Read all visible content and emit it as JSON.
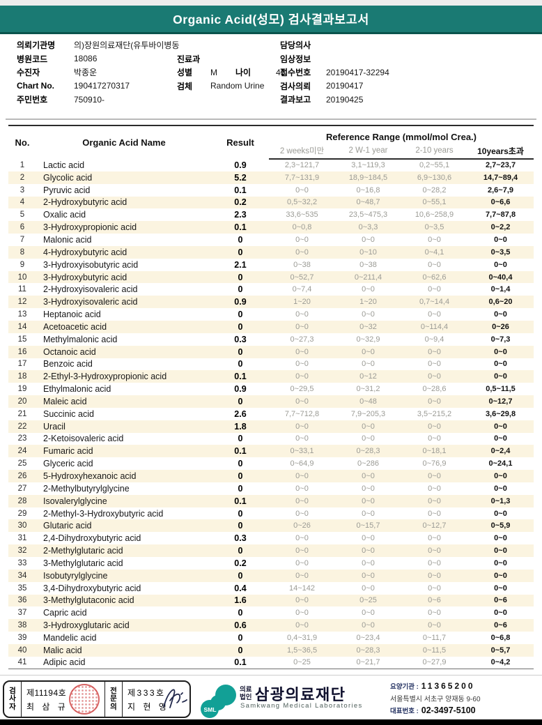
{
  "header": {
    "title": "Organic Acid(성모) 검사결과보고서"
  },
  "colors": {
    "banner_teal": "#1a7a73",
    "banner_border": "#0b544d",
    "row_stripe": "#fbf4e0",
    "reference_gray": "#9b9b95",
    "seal_red": "#c92a2a",
    "logo_teal": "#12a096",
    "logo_navy": "#0f102d"
  },
  "info": {
    "left": [
      {
        "label": "의뢰기관명",
        "value": "의)장원의료재단(유투바이병동"
      },
      {
        "label": "병원코드",
        "value": "18086"
      },
      {
        "label": "수진자",
        "value": "박종운"
      },
      {
        "label": "Chart No.",
        "value": "190417270317"
      },
      {
        "label": "주민번호",
        "value": "750910-"
      }
    ],
    "mid": [
      {
        "label": "진료과",
        "value": ""
      },
      {
        "label": "성별",
        "value": "M",
        "label2": "나이",
        "value2": "43"
      },
      {
        "label": "검체",
        "value": "Random Urine"
      }
    ],
    "right": [
      {
        "label": "담당의사",
        "value": ""
      },
      {
        "label": "임상정보",
        "value": ""
      },
      {
        "label": "접수번호",
        "value": "20190417-32294"
      },
      {
        "label": "검사의뢰",
        "value": "20190417"
      },
      {
        "label": "결과보고",
        "value": "20190425"
      }
    ]
  },
  "table": {
    "col_no": "No.",
    "col_name": "Organic Acid Name",
    "col_result": "Result",
    "col_ref": "Reference Range (mmol/mol Crea.)",
    "sub": [
      "2 weeks미만",
      "2 W-1 year",
      "2-10 years",
      "10years초과"
    ],
    "rows": [
      [
        1,
        "Lactic acid",
        "0.9",
        "2,3~121,7",
        "3,1~119,3",
        "0,2~55,1",
        "2,7~23,7"
      ],
      [
        2,
        "Glycolic acid",
        "5.2",
        "7,7~131,9",
        "18,9~184,5",
        "6,9~130,6",
        "14,7~89,4"
      ],
      [
        3,
        "Pyruvic acid",
        "0.1",
        "0~0",
        "0~16,8",
        "0~28,2",
        "2,6~7,9"
      ],
      [
        4,
        "2-Hydroxybutyric acid",
        "0.2",
        "0,5~32,2",
        "0~48,7",
        "0~55,1",
        "0~6,6"
      ],
      [
        5,
        "Oxalic acid",
        "2.3",
        "33,6~535",
        "23,5~475,3",
        "10,6~258,9",
        "7,7~87,8"
      ],
      [
        6,
        "3-Hydroxypropionic acid",
        "0.1",
        "0~0,8",
        "0~3,3",
        "0~3,5",
        "0~2,2"
      ],
      [
        7,
        "Malonic acid",
        "0",
        "0~0",
        "0~0",
        "0~0",
        "0~0"
      ],
      [
        8,
        "4-Hydroxybutyric acid",
        "0",
        "0~0",
        "0~10",
        "0~4,1",
        "0~3,5"
      ],
      [
        9,
        "3-Hydroxyisobutyric acid",
        "2.1",
        "0~38",
        "0~38",
        "0~0",
        "0~0"
      ],
      [
        10,
        "3-Hydroxybutyric acid",
        "0",
        "0~52,7",
        "0~211,4",
        "0~62,6",
        "0~40,4"
      ],
      [
        11,
        "2-Hydroxyisovaleric acid",
        "0",
        "0~7,4",
        "0~0",
        "0~0",
        "0~1,4"
      ],
      [
        12,
        "3-Hydroxyisovaleric acid",
        "0.9",
        "1~20",
        "1~20",
        "0,7~14,4",
        "0,6~20"
      ],
      [
        13,
        "Heptanoic acid",
        "0",
        "0~0",
        "0~0",
        "0~0",
        "0~0"
      ],
      [
        14,
        "Acetoacetic acid",
        "0",
        "0~0",
        "0~32",
        "0~114,4",
        "0~26"
      ],
      [
        15,
        "Methylmalonic acid",
        "0.3",
        "0~27,3",
        "0~32,9",
        "0~9,4",
        "0~7,3"
      ],
      [
        16,
        "Octanoic acid",
        "0",
        "0~0",
        "0~0",
        "0~0",
        "0~0"
      ],
      [
        17,
        "Benzoic acid",
        "0",
        "0~0",
        "0~0",
        "0~0",
        "0~0"
      ],
      [
        18,
        "2-Ethyl-3-Hydroxypropionic acid",
        "0.1",
        "0~0",
        "0~12",
        "0~0",
        "0~0"
      ],
      [
        19,
        "Ethylmalonic acid",
        "0.9",
        "0~29,5",
        "0~31,2",
        "0~28,6",
        "0,5~11,5"
      ],
      [
        20,
        "Maleic acid",
        "0",
        "0~0",
        "0~48",
        "0~0",
        "0~12,7"
      ],
      [
        21,
        "Succinic acid",
        "2.6",
        "7,7~712,8",
        "7,9~205,3",
        "3,5~215,2",
        "3,6~29,8"
      ],
      [
        22,
        "Uracil",
        "1.8",
        "0~0",
        "0~0",
        "0~0",
        "0~0"
      ],
      [
        23,
        "2-Ketoisovaleric acid",
        "0",
        "0~0",
        "0~0",
        "0~0",
        "0~0"
      ],
      [
        24,
        "Fumaric acid",
        "0.1",
        "0~33,1",
        "0~28,3",
        "0~18,1",
        "0~2,4"
      ],
      [
        25,
        "Glyceric acid",
        "0",
        "0~64,9",
        "0~286",
        "0~76,9",
        "0~24,1"
      ],
      [
        26,
        "5-Hydroxyhexanoic acid",
        "0",
        "0~0",
        "0~0",
        "0~0",
        "0~0"
      ],
      [
        27,
        "2-Methylbutyrylglycine",
        "0",
        "0~0",
        "0~0",
        "0~0",
        "0~0"
      ],
      [
        28,
        "Isovalerylglycine",
        "0.1",
        "0~0",
        "0~0",
        "0~0",
        "0~1,3"
      ],
      [
        29,
        "2-Methyl-3-Hydroxybutyric acid",
        "0",
        "0~0",
        "0~0",
        "0~0",
        "0~0"
      ],
      [
        30,
        "Glutaric acid",
        "0",
        "0~26",
        "0~15,7",
        "0~12,7",
        "0~5,9"
      ],
      [
        31,
        "2,4-Dihydroxybutyric acid",
        "0.3",
        "0~0",
        "0~0",
        "0~0",
        "0~0"
      ],
      [
        32,
        "2-Methylglutaric acid",
        "0",
        "0~0",
        "0~0",
        "0~0",
        "0~0"
      ],
      [
        33,
        "3-Methylglutaric acid",
        "0.2",
        "0~0",
        "0~0",
        "0~0",
        "0~0"
      ],
      [
        34,
        "Isobutyrylglycine",
        "0",
        "0~0",
        "0~0",
        "0~0",
        "0~0"
      ],
      [
        35,
        "3,4-Dihydroxybutyric acid",
        "0.4",
        "14~142",
        "0~0",
        "0~0",
        "0~0"
      ],
      [
        36,
        "3-Methylglutaconic acid",
        "1.6",
        "0~0",
        "0~25",
        "0~6",
        "0~6"
      ],
      [
        37,
        "Capric acid",
        "0",
        "0~0",
        "0~0",
        "0~0",
        "0~0"
      ],
      [
        38,
        "3-Hydroxyglutaric acid",
        "0.6",
        "0~0",
        "0~0",
        "0~0",
        "0~6"
      ],
      [
        39,
        "Mandelic acid",
        "0",
        "0,4~31,9",
        "0~23,4",
        "0~11,7",
        "0~6,8"
      ],
      [
        40,
        "Malic acid",
        "0",
        "1,5~36,5",
        "0~28,3",
        "0~11,5",
        "0~5,7"
      ],
      [
        41,
        "Adipic acid",
        "0.1",
        "0~25",
        "0~21,7",
        "0~27,9",
        "0~4,2"
      ]
    ]
  },
  "footer": {
    "examiner_label": "검사자",
    "examiner_no": "제11194호",
    "examiner_name": "최 삼 규",
    "specialist_label": "전문의",
    "specialist_no": "제333호",
    "specialist_name": "지 현 영",
    "logo_sml": "SML",
    "logo_small": "의료법인",
    "logo_large": "삼광의료재단",
    "logo_en": "Samkwang Medical Laboratories",
    "org_label": "요양기관 :",
    "org_no": "11365200",
    "address": "서울특별시 서초구 양재동 9-60",
    "tel_label": "대표번호 :",
    "tel_no": "02-3497-5100"
  }
}
